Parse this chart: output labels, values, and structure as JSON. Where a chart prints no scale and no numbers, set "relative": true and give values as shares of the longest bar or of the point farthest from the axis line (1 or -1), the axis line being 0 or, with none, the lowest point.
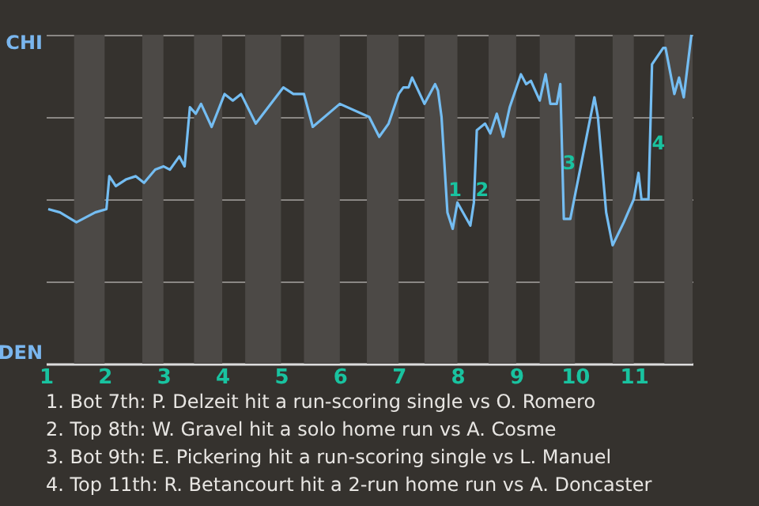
{
  "chart_data": {
    "type": "line",
    "relative": true,
    "x": [
      1.04,
      1.24,
      1.52,
      1.84,
      2.03,
      2.08,
      2.19,
      2.36,
      2.53,
      2.67,
      2.86,
      3.0,
      3.11,
      3.27,
      3.36,
      3.45,
      3.55,
      3.64,
      3.82,
      4.04,
      4.18,
      4.32,
      4.57,
      5.04,
      5.21,
      5.39,
      5.54,
      6.0,
      6.5,
      6.67,
      6.83,
      7.0,
      7.08,
      7.17,
      7.23,
      7.44,
      7.62,
      7.67,
      7.73,
      7.83,
      7.92,
      8.0,
      8.22,
      8.28,
      8.33,
      8.47,
      8.56,
      8.67,
      8.78,
      8.89,
      9.08,
      9.17,
      9.25,
      9.4,
      9.5,
      9.58,
      9.69,
      9.75,
      9.81,
      9.92,
      10.33,
      10.39,
      10.53,
      10.64,
      10.83,
      11.0,
      11.08,
      11.13,
      11.25,
      11.31,
      11.5,
      11.54,
      11.69,
      11.77,
      11.85,
      11.98
    ],
    "series": [
      {
        "color": "#74bdf2",
        "values": [
          0.47,
          0.46,
          0.43,
          0.46,
          0.47,
          0.57,
          0.54,
          0.56,
          0.57,
          0.55,
          0.59,
          0.6,
          0.59,
          0.63,
          0.6,
          0.78,
          0.76,
          0.79,
          0.72,
          0.82,
          0.8,
          0.82,
          0.73,
          0.84,
          0.82,
          0.82,
          0.72,
          0.79,
          0.75,
          0.69,
          0.73,
          0.82,
          0.84,
          0.84,
          0.87,
          0.79,
          0.85,
          0.83,
          0.75,
          0.46,
          0.41,
          0.49,
          0.42,
          0.49,
          0.71,
          0.73,
          0.7,
          0.76,
          0.69,
          0.78,
          0.88,
          0.85,
          0.86,
          0.8,
          0.88,
          0.79,
          0.79,
          0.85,
          0.44,
          0.44,
          0.81,
          0.75,
          0.46,
          0.36,
          0.43,
          0.5,
          0.58,
          0.5,
          0.5,
          0.91,
          0.96,
          0.96,
          0.82,
          0.87,
          0.81,
          1.0
        ]
      }
    ],
    "xlim": [
      1,
      12
    ],
    "xticks": [
      1,
      2,
      3,
      4,
      5,
      6,
      7,
      8,
      9,
      10,
      11
    ],
    "grid": "y",
    "marker": "none",
    "line_style": "solid",
    "bands": [
      {
        "axis": "x",
        "from": 1.48,
        "to": 2.0,
        "color": "#4c4946"
      },
      {
        "axis": "x",
        "from": 2.64,
        "to": 3.0,
        "color": "#4c4946"
      },
      {
        "axis": "x",
        "from": 3.52,
        "to": 4.0,
        "color": "#4c4946"
      },
      {
        "axis": "x",
        "from": 4.39,
        "to": 5.0,
        "color": "#4c4946"
      },
      {
        "axis": "x",
        "from": 5.39,
        "to": 6.0,
        "color": "#4c4946"
      },
      {
        "axis": "x",
        "from": 6.46,
        "to": 7.0,
        "color": "#4c4946"
      },
      {
        "axis": "x",
        "from": 7.44,
        "to": 8.0,
        "color": "#4c4946"
      },
      {
        "axis": "x",
        "from": 8.53,
        "to": 9.0,
        "color": "#4c4946"
      },
      {
        "axis": "x",
        "from": 9.4,
        "to": 10.0,
        "color": "#4c4946"
      },
      {
        "axis": "x",
        "from": 10.64,
        "to": 11.0,
        "color": "#4c4946"
      },
      {
        "axis": "x",
        "from": 11.52,
        "to": 12.0,
        "color": "#4c4946"
      }
    ],
    "annotations": [
      "CHI",
      "DEN",
      {
        "text": "1",
        "x": 7.96,
        "y": 0.53
      },
      {
        "text": "2",
        "x": 8.42,
        "y": 0.53
      },
      {
        "text": "3",
        "x": 9.9,
        "y": 0.61
      },
      {
        "text": "4",
        "x": 11.42,
        "y": 0.67
      },
      "1. Bot 7th: P. Delzeit hit a run-scoring single vs O. Romero",
      "2. Top 8th: W. Gravel hit a solo home run vs A. Cosme",
      "3. Bot 9th: E. Pickering hit a run-scoring single vs L. Manuel",
      "4. Top 11th: R. Betancourt hit a 2-run home run vs A. Doncaster"
    ]
  }
}
